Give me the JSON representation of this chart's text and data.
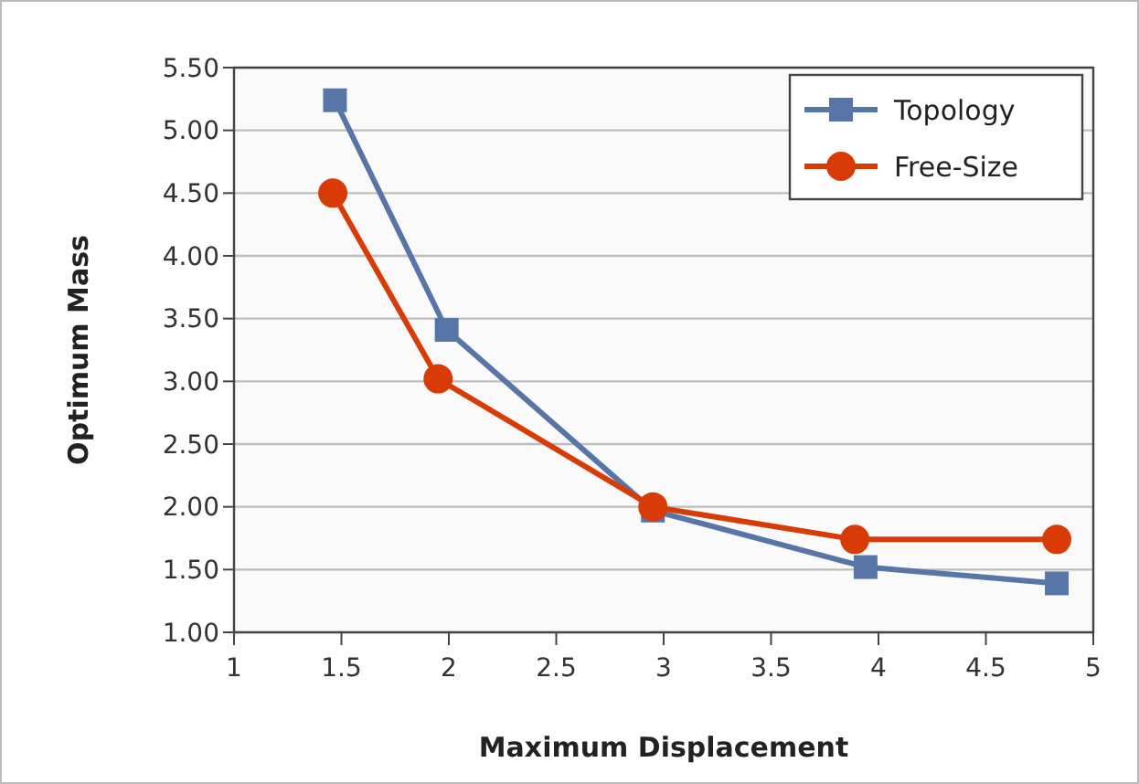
{
  "chart_data": {
    "type": "line",
    "xlabel": "Maximum Displacement",
    "ylabel": "Optimum Mass",
    "xlim": [
      1,
      5
    ],
    "xticks": [
      1,
      1.5,
      2,
      2.5,
      3,
      3.5,
      4,
      4.5,
      5
    ],
    "ylim": [
      1,
      5.5
    ],
    "yticks": [
      {
        "value": 1,
        "label": "1.00"
      },
      {
        "value": 1.5,
        "label": "1.50"
      },
      {
        "value": 2,
        "label": "2.00"
      },
      {
        "value": 2.5,
        "label": "2.50"
      },
      {
        "value": 3,
        "label": "3.00"
      },
      {
        "value": 3.5,
        "label": "3.50"
      },
      {
        "value": 4,
        "label": "4.00"
      },
      {
        "value": 4.5,
        "label": "4.50"
      },
      {
        "value": 5,
        "label": "5.00"
      },
      {
        "value": 5.5,
        "label": "5.50"
      }
    ],
    "grid": "y",
    "legend": "top right",
    "series": [
      {
        "name": "Topology",
        "color": "#5875a8",
        "marker": "square",
        "x": [
          1.47,
          1.99,
          2.95,
          3.94,
          4.83
        ],
        "values": [
          5.24,
          3.41,
          1.97,
          1.52,
          1.39
        ]
      },
      {
        "name": "Free-Size",
        "color": "#d93b06",
        "marker": "circle",
        "x": [
          1.46,
          1.95,
          2.95,
          3.89,
          4.83
        ],
        "values": [
          4.5,
          3.02,
          2.0,
          1.74,
          1.74
        ]
      }
    ]
  }
}
